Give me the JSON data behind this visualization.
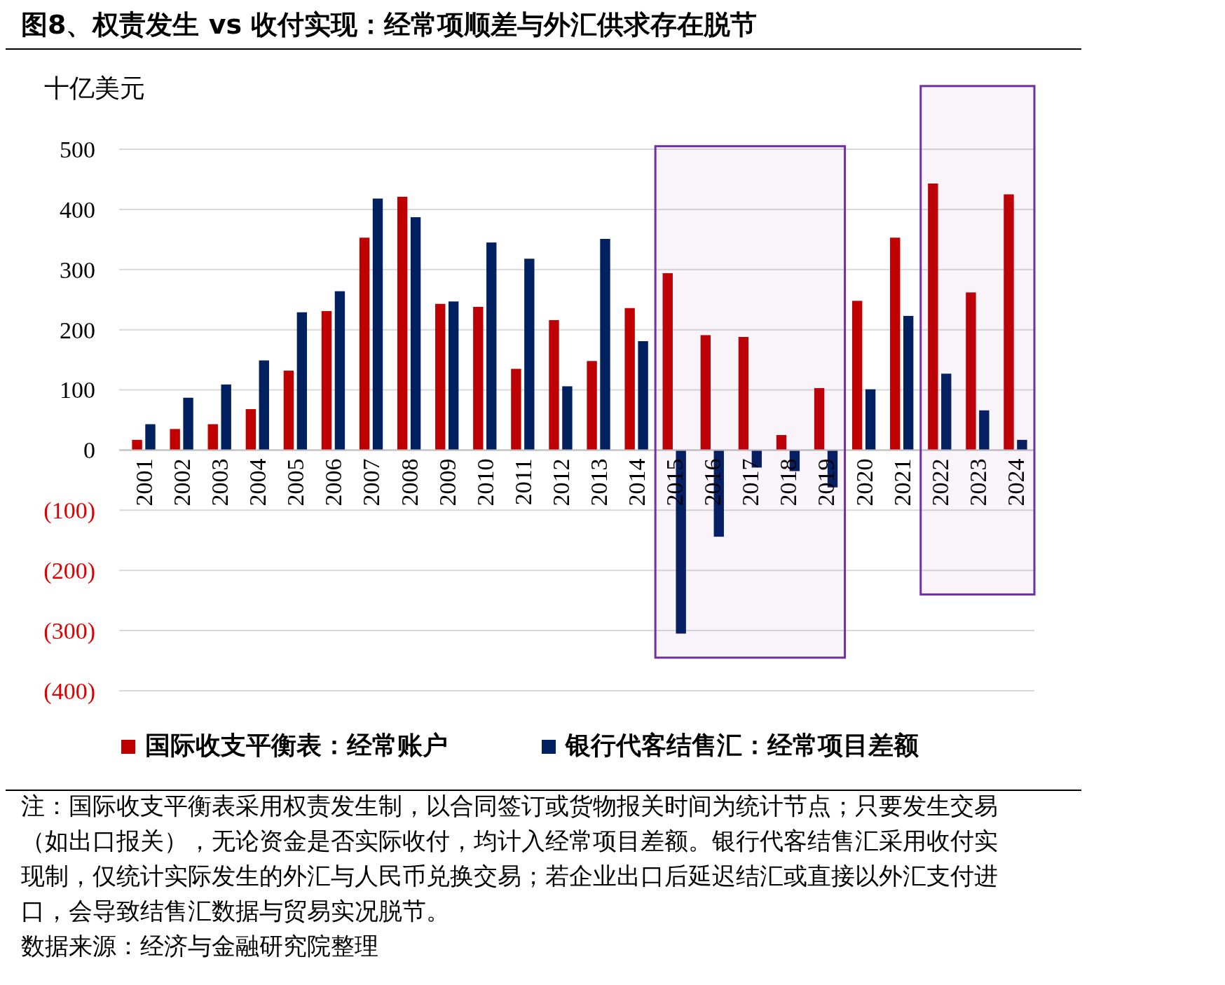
{
  "chart_data": {
    "type": "bar",
    "title": "图8、权责发生 vs 收付实现：经常项顺差与外汇供求存在脱节",
    "ylabel": "十亿美元",
    "categories": [
      "2001",
      "2002",
      "2003",
      "2004",
      "2005",
      "2006",
      "2007",
      "2008",
      "2009",
      "2010",
      "2011",
      "2012",
      "2013",
      "2014",
      "2015",
      "2016",
      "2017",
      "2018",
      "2019",
      "2020",
      "2021",
      "2022",
      "2023",
      "2024"
    ],
    "series": [
      {
        "name": "国际收支平衡表：经常账户",
        "color": "#c00000",
        "values": [
          17,
          35,
          43,
          68,
          132,
          231,
          353,
          421,
          243,
          238,
          135,
          216,
          148,
          236,
          294,
          191,
          188,
          25,
          103,
          248,
          353,
          443,
          262,
          425
        ]
      },
      {
        "name": "银行代客结售汇：经常项目差额",
        "color": "#002060",
        "values": [
          43,
          87,
          109,
          149,
          229,
          264,
          418,
          387,
          247,
          345,
          318,
          106,
          351,
          181,
          -305,
          -144,
          -29,
          -35,
          -62,
          101,
          223,
          127,
          66,
          17
        ]
      }
    ],
    "ylim": [
      -400,
      500
    ],
    "yticks": [
      {
        "value": -400,
        "label": "(400)"
      },
      {
        "value": -300,
        "label": "(300)"
      },
      {
        "value": -200,
        "label": "(200)"
      },
      {
        "value": -100,
        "label": "(100)"
      },
      0,
      100,
      200,
      300,
      400,
      500
    ],
    "grid": "y",
    "legend": "bottom",
    "bands": [
      {
        "axis": "x",
        "from": "2015",
        "to": "2019",
        "color": "#7030a0"
      },
      {
        "axis": "x",
        "from": "2022",
        "to": "2024",
        "color": "#7030a0"
      }
    ],
    "annotations": [
      "注：国际收支平衡表采用权责发生制，以合同签订或货物报关时间为统计节点；只要发生交易（如出口报关），无论资金是否实际收付，均计入经常项目差额。银行代客结售汇采用收付实现制，仅统计实际发生的外汇与人民币兑换交易；若企业出口后延迟结汇或直接以外汇支付进口，会导致结售汇数据与贸易实况脱节。",
      "数据来源：经济与金融研究院整理"
    ]
  }
}
